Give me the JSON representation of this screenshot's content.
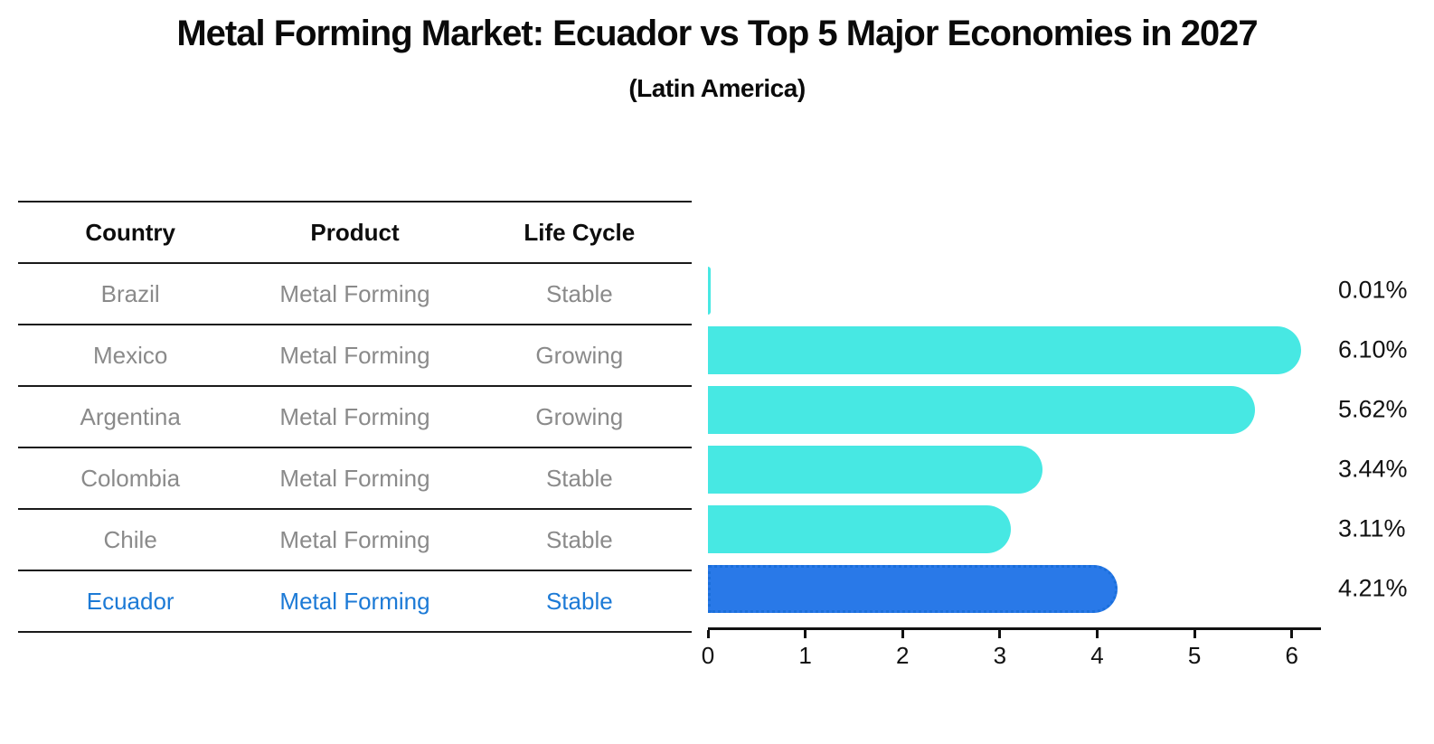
{
  "title": "Metal Forming Market: Ecuador vs Top 5 Major Economies in 2027",
  "subtitle": "(Latin America)",
  "table": {
    "headers": [
      "Country",
      "Product",
      "Life Cycle"
    ],
    "rows": [
      {
        "country": "Brazil",
        "product": "Metal Forming",
        "life_cycle": "Stable",
        "highlight": false
      },
      {
        "country": "Mexico",
        "product": "Metal Forming",
        "life_cycle": "Growing",
        "highlight": false
      },
      {
        "country": "Argentina",
        "product": "Metal Forming",
        "life_cycle": "Growing",
        "highlight": false
      },
      {
        "country": "Colombia",
        "product": "Metal Forming",
        "life_cycle": "Stable",
        "highlight": false
      },
      {
        "country": "Chile",
        "product": "Metal Forming",
        "life_cycle": "Stable",
        "highlight": false
      },
      {
        "country": "Ecuador",
        "product": "Metal Forming",
        "life_cycle": "Stable",
        "highlight": true
      }
    ]
  },
  "chart_data": {
    "type": "bar",
    "orientation": "horizontal",
    "title": "Metal Forming Market: Ecuador vs Top 5 Major Economies in 2027",
    "subtitle": "(Latin America)",
    "categories": [
      "Brazil",
      "Mexico",
      "Argentina",
      "Colombia",
      "Chile",
      "Ecuador"
    ],
    "values": [
      0.01,
      6.1,
      5.62,
      3.44,
      3.11,
      4.21
    ],
    "value_labels": [
      "0.01%",
      "6.10%",
      "5.62%",
      "3.44%",
      "3.11%",
      "4.21%"
    ],
    "xlabel": "",
    "ylabel": "",
    "xlim": [
      0,
      6.3
    ],
    "xticks": [
      0,
      1,
      2,
      3,
      4,
      5,
      6
    ],
    "grid": false,
    "legend": false,
    "highlight_index": 5
  },
  "colors": {
    "bar": "#47E8E3",
    "highlight_bar": "#2979E8",
    "highlight_bar_border": "#1A6FDB",
    "highlight_text": "#1C7AD6",
    "row_text": "#8A8A8A",
    "header_text": "#0D0D0D",
    "axis": "#111111",
    "value_label": "#111111"
  }
}
